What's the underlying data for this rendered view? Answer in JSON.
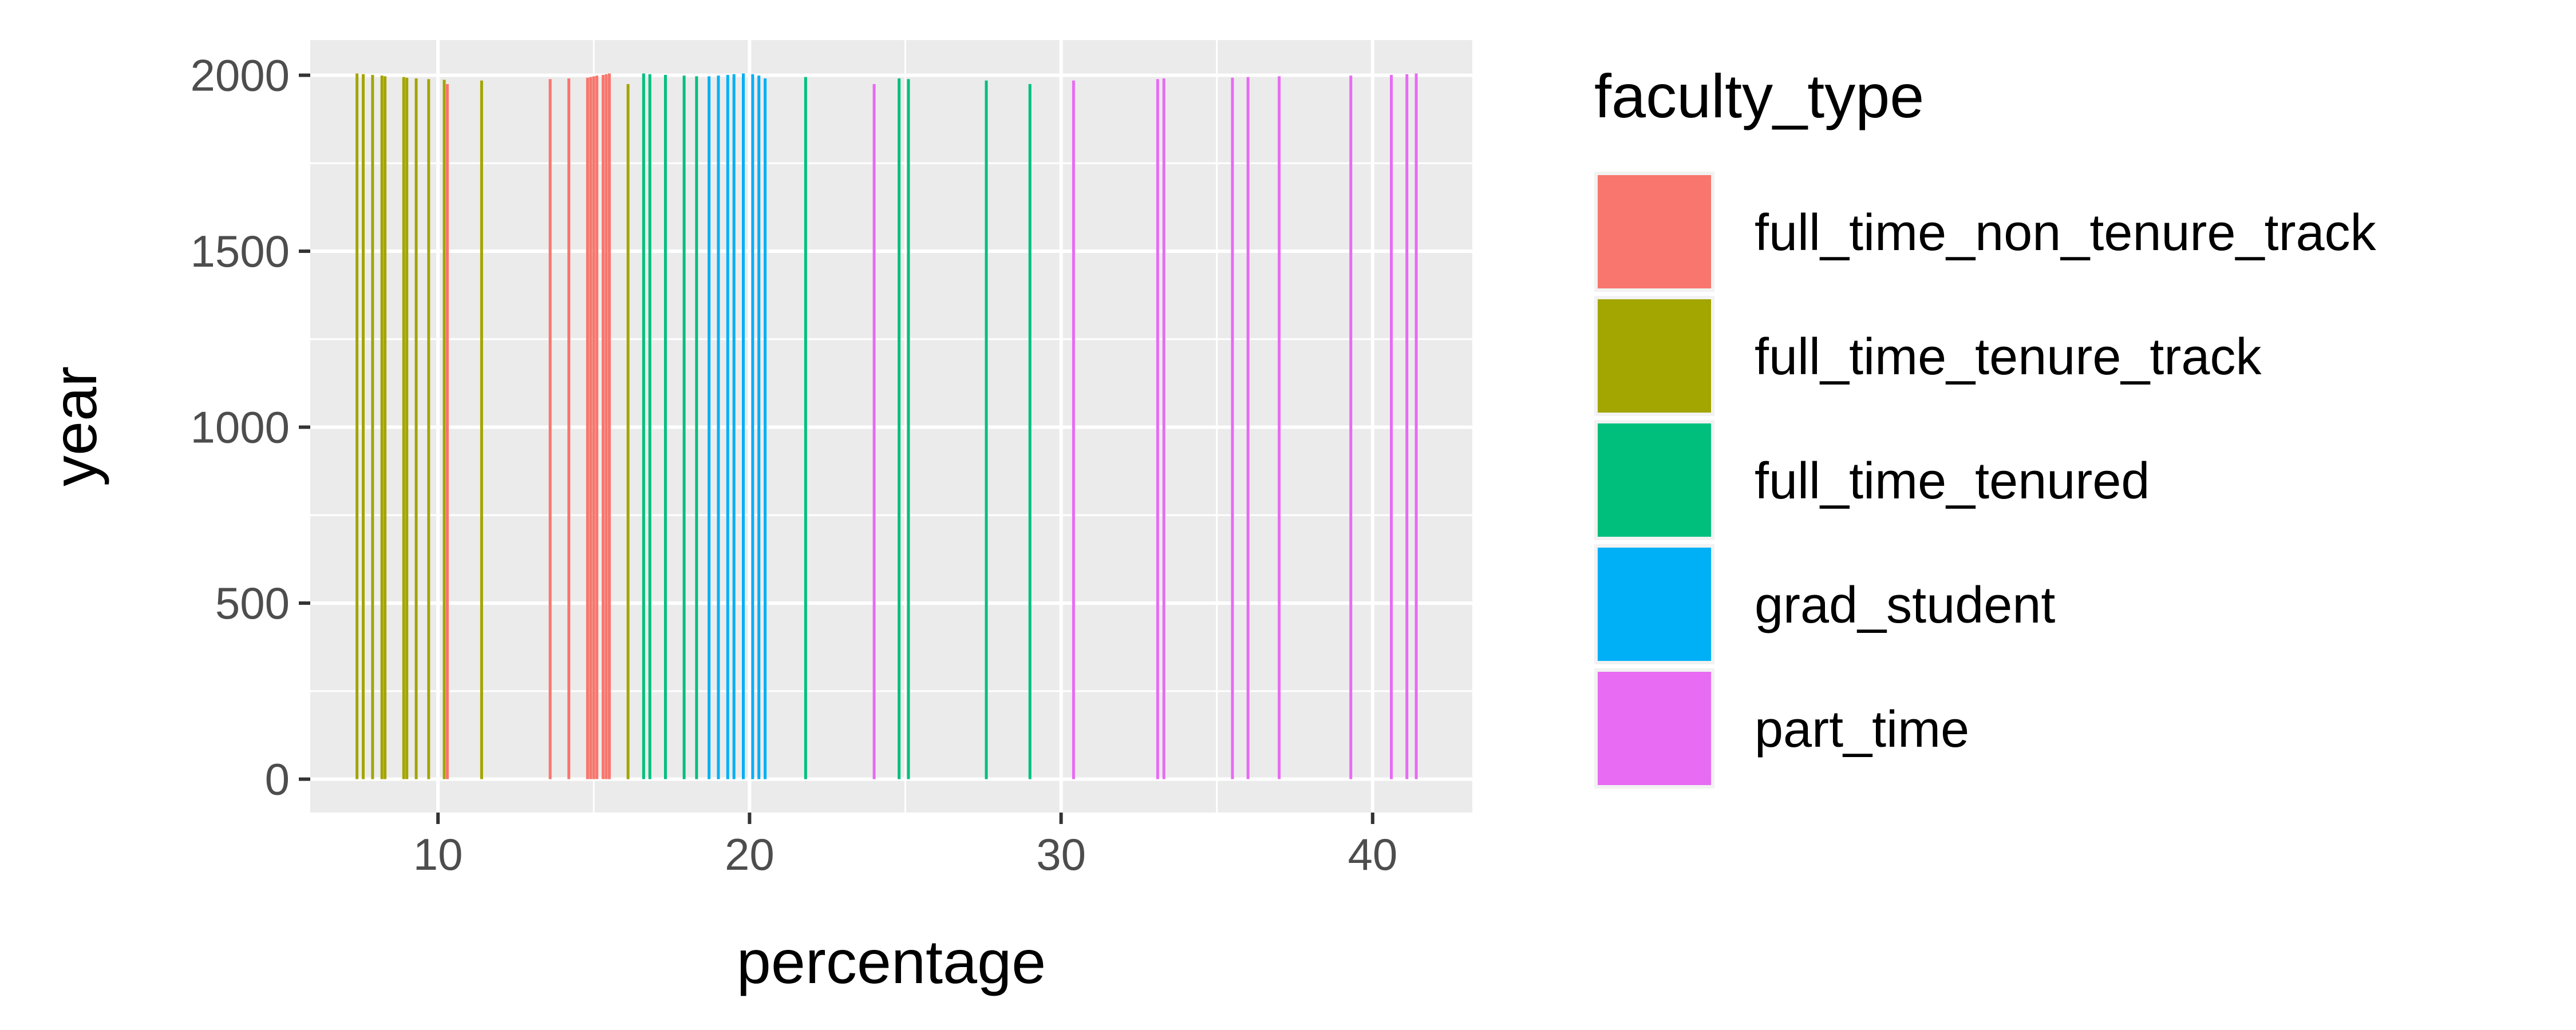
{
  "chart_data": {
    "type": "bar",
    "orientation": "vertical",
    "xlabel": "percentage",
    "ylabel": "year",
    "xlim": [
      5.9,
      43.2
    ],
    "ylim": [
      -95,
      2100
    ],
    "x_ticks": [
      10,
      20,
      30,
      40
    ],
    "y_ticks": [
      0,
      500,
      1000,
      1500,
      2000
    ],
    "x_tick_labels": [
      "10",
      "20",
      "30",
      "40"
    ],
    "y_tick_labels": [
      "0",
      "500",
      "1000",
      "1500",
      "2000"
    ],
    "grid": true,
    "legend": {
      "title": "faculty_type",
      "position": "right",
      "entries": [
        {
          "name": "full_time_non_tenure_track",
          "color": "#F8766D"
        },
        {
          "name": "full_time_tenure_track",
          "color": "#A3A500"
        },
        {
          "name": "full_time_tenured",
          "color": "#00BF7D"
        },
        {
          "name": "grad_student",
          "color": "#00B0F6"
        },
        {
          "name": "part_time",
          "color": "#E76BF3"
        }
      ]
    },
    "series": [
      {
        "name": "full_time_non_tenure_track",
        "color": "#F8766D",
        "points": [
          [
            10.3,
            1975
          ],
          [
            13.6,
            1989
          ],
          [
            14.2,
            1991
          ],
          [
            14.8,
            1993
          ],
          [
            14.9,
            1995
          ],
          [
            15.0,
            1997
          ],
          [
            15.1,
            1999
          ],
          [
            15.3,
            2001
          ],
          [
            15.4,
            2003
          ],
          [
            15.5,
            2005
          ]
        ]
      },
      {
        "name": "full_time_tenure_track",
        "color": "#A3A500",
        "points": [
          [
            7.4,
            2005
          ],
          [
            7.6,
            2003
          ],
          [
            7.9,
            2001
          ],
          [
            8.2,
            1999
          ],
          [
            8.3,
            1997
          ],
          [
            8.9,
            1995
          ],
          [
            9.0,
            1993
          ],
          [
            9.3,
            1991
          ],
          [
            9.7,
            1989
          ],
          [
            10.2,
            1987
          ],
          [
            11.4,
            1985
          ],
          [
            16.1,
            1975
          ]
        ]
      },
      {
        "name": "full_time_tenured",
        "color": "#00BF7D",
        "points": [
          [
            16.6,
            2005
          ],
          [
            16.8,
            2003
          ],
          [
            17.3,
            2001
          ],
          [
            17.9,
            1999
          ],
          [
            18.3,
            1997
          ],
          [
            21.8,
            1995
          ],
          [
            24.8,
            1991
          ],
          [
            25.1,
            1989
          ],
          [
            27.6,
            1985
          ],
          [
            29.0,
            1975
          ]
        ]
      },
      {
        "name": "grad_student",
        "color": "#00B0F6",
        "points": [
          [
            18.7,
            1997
          ],
          [
            19.0,
            1999
          ],
          [
            19.3,
            2001
          ],
          [
            19.5,
            2003
          ],
          [
            19.8,
            2005
          ],
          [
            20.1,
            2003
          ],
          [
            20.3,
            1999
          ],
          [
            20.5,
            1991
          ]
        ]
      },
      {
        "name": "part_time",
        "color": "#E76BF3",
        "points": [
          [
            24.0,
            1975
          ],
          [
            30.4,
            1985
          ],
          [
            33.1,
            1989
          ],
          [
            33.3,
            1991
          ],
          [
            35.5,
            1993
          ],
          [
            36.0,
            1995
          ],
          [
            37.0,
            1997
          ],
          [
            39.3,
            1999
          ],
          [
            40.6,
            2001
          ],
          [
            41.1,
            2003
          ],
          [
            41.4,
            2005
          ]
        ]
      }
    ]
  }
}
